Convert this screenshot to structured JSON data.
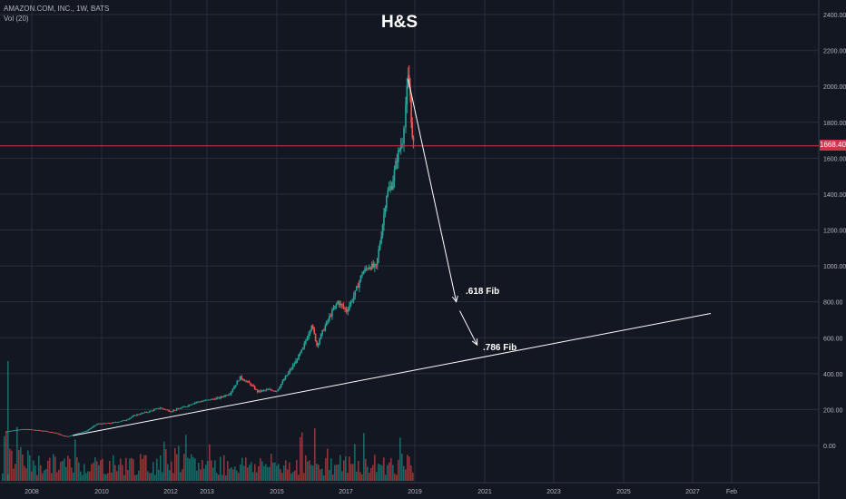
{
  "header": {
    "symbol_line": "AMAZON.COM, INC., 1W, BATS",
    "volume_line": "Vol (20)"
  },
  "colors": {
    "background": "#131722",
    "grid": "#2a2e39",
    "up_candle": "#26a69a",
    "down_candle": "#ef5350",
    "price_line": "#d0344d",
    "drawing": "#ffffff"
  },
  "chart_data": {
    "type": "candlestick",
    "title": "H&S",
    "x_axis": {
      "tick_labels": [
        "2008",
        "2010",
        "2012",
        "2013",
        "2015",
        "2017",
        "2019",
        "2021",
        "2023",
        "2025",
        "2027",
        "Feb"
      ]
    },
    "y_axis": {
      "range": [
        -200,
        2400
      ],
      "tick_labels": [
        "0.00",
        "200.00",
        "400.00",
        "600.00",
        "800.00",
        "1000.00",
        "1200.00",
        "1400.00",
        "1600.00",
        "1800.00",
        "2000.00",
        "2200.00",
        "2400.00"
      ]
    },
    "grid": true,
    "current_price": 1668.4,
    "current_price_label": "1668.40",
    "price_path": [
      [
        2007.2,
        78
      ],
      [
        2007.6,
        90
      ],
      [
        2007.9,
        88
      ],
      [
        2008.3,
        80
      ],
      [
        2008.6,
        70
      ],
      [
        2008.8,
        55
      ],
      [
        2008.95,
        50
      ],
      [
        2009.2,
        65
      ],
      [
        2009.5,
        82
      ],
      [
        2009.8,
        120
      ],
      [
        2010.2,
        125
      ],
      [
        2010.6,
        140
      ],
      [
        2010.9,
        170
      ],
      [
        2011.3,
        190
      ],
      [
        2011.6,
        210
      ],
      [
        2011.9,
        190
      ],
      [
        2012.3,
        215
      ],
      [
        2012.6,
        240
      ],
      [
        2012.9,
        250
      ],
      [
        2013.3,
        265
      ],
      [
        2013.6,
        290
      ],
      [
        2013.9,
        380
      ],
      [
        2014.2,
        340
      ],
      [
        2014.4,
        300
      ],
      [
        2014.7,
        310
      ],
      [
        2014.95,
        305
      ],
      [
        2015.2,
        380
      ],
      [
        2015.5,
        470
      ],
      [
        2015.7,
        540
      ],
      [
        2015.95,
        675
      ],
      [
        2016.1,
        560
      ],
      [
        2016.3,
        650
      ],
      [
        2016.5,
        730
      ],
      [
        2016.7,
        800
      ],
      [
        2016.95,
        750
      ],
      [
        2017.2,
        850
      ],
      [
        2017.4,
        960
      ],
      [
        2017.6,
        1000
      ],
      [
        2017.8,
        990
      ],
      [
        2017.95,
        1180
      ],
      [
        2018.1,
        1400
      ],
      [
        2018.25,
        1450
      ],
      [
        2018.4,
        1600
      ],
      [
        2018.55,
        1700
      ],
      [
        2018.65,
        1900
      ],
      [
        2018.72,
        2040
      ],
      [
        2018.78,
        1950
      ],
      [
        2018.84,
        1700
      ],
      [
        2018.9,
        1640
      ]
    ],
    "annotations": [
      {
        "text": "H&S",
        "kind": "title"
      },
      {
        "text": ".618 Fib",
        "kind": "arrow-label",
        "arrow_from": [
          2018.72,
          2040
        ],
        "arrow_to": [
          2020.1,
          800
        ]
      },
      {
        "text": ".786 Fib",
        "kind": "arrow-label",
        "arrow_from": [
          2020.2,
          750
        ],
        "arrow_to": [
          2020.7,
          560
        ]
      },
      {
        "text": "trendline",
        "kind": "line",
        "from": [
          2009.1,
          55
        ],
        "to": [
          2027.4,
          735
        ]
      }
    ]
  },
  "annotations_text": {
    "fib618": ".618 Fib",
    "fib786": ".786 Fib"
  }
}
